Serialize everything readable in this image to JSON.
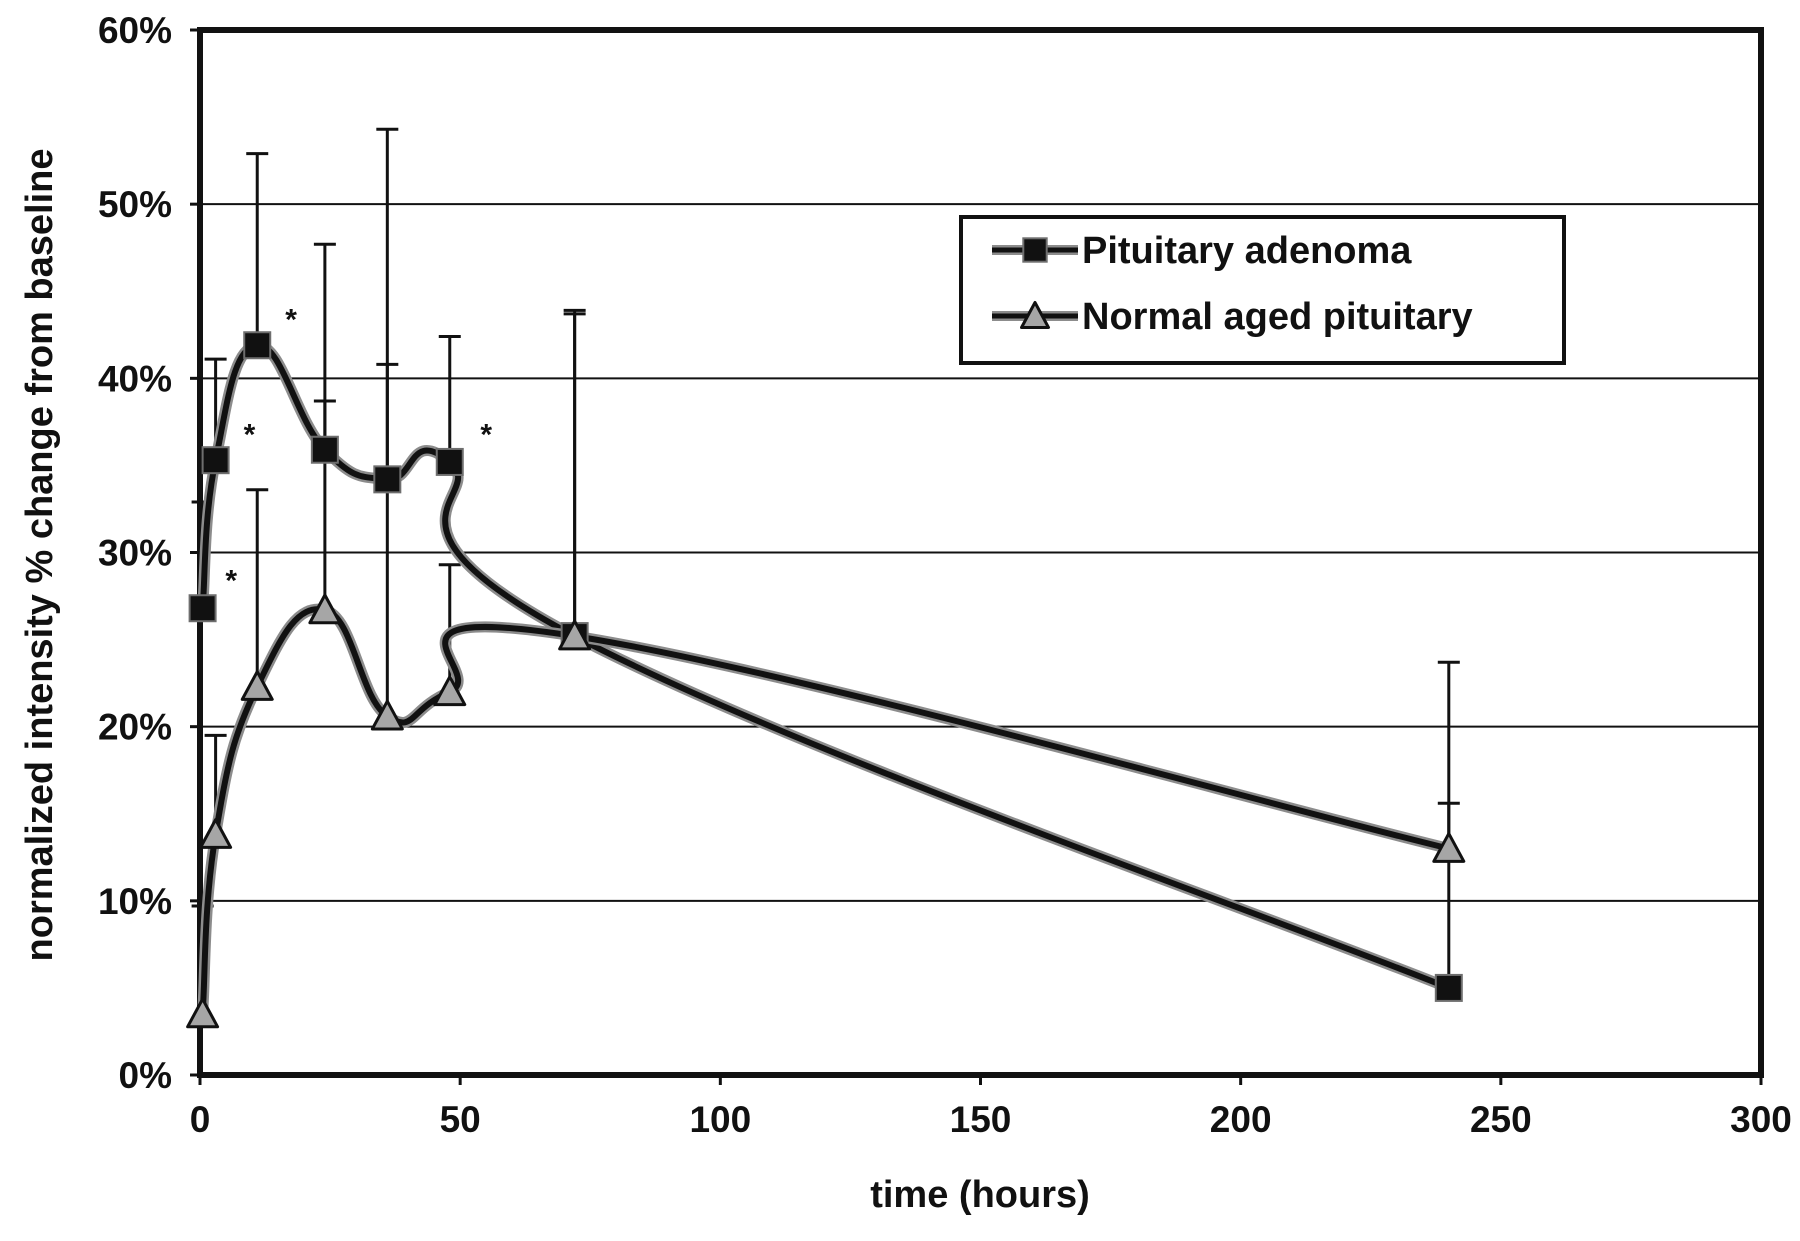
{
  "chart_data": {
    "type": "line",
    "title": "",
    "xlabel": "time (hours)",
    "ylabel": "normalized intensity % change from baseline",
    "xlim": [
      0,
      300
    ],
    "ylim": [
      0,
      60
    ],
    "x_ticks": [
      0,
      50,
      100,
      150,
      200,
      250,
      300
    ],
    "y_ticks": [
      0,
      10,
      20,
      30,
      40,
      50,
      60
    ],
    "x_tick_labels": [
      "0",
      "50",
      "100",
      "150",
      "200",
      "250",
      "300"
    ],
    "y_tick_labels": [
      "0%",
      "10%",
      "20%",
      "30%",
      "40%",
      "50%",
      "60%"
    ],
    "grid": "horizontal",
    "legend_position": "top-right",
    "series": [
      {
        "name": "Pituitary adenoma",
        "marker": "square",
        "color": "#111111",
        "x": [
          0.5,
          3,
          11,
          24,
          36,
          48,
          72,
          240
        ],
        "y": [
          26.8,
          35.3,
          41.9,
          35.9,
          34.2,
          35.2,
          25.2,
          5.0
        ],
        "error_upper": [
          32.9,
          41.1,
          52.9,
          47.7,
          54.3,
          42.4,
          43.9,
          15.6
        ]
      },
      {
        "name": "Normal aged pituitary",
        "marker": "triangle",
        "color": "#9a9a9a",
        "x": [
          0.5,
          3,
          11,
          24,
          36,
          48,
          72,
          240
        ],
        "y": [
          3.5,
          13.8,
          22.3,
          26.7,
          20.6,
          22.0,
          25.2,
          13.0
        ],
        "error_upper": [
          9.7,
          19.5,
          33.6,
          38.7,
          40.8,
          29.3,
          43.7,
          23.7
        ]
      }
    ],
    "annotations": [
      {
        "text": "*",
        "x": 6,
        "y": 28.5
      },
      {
        "text": "*",
        "x": 9.5,
        "y": 36.9
      },
      {
        "text": "*",
        "x": 17.5,
        "y": 43.5
      },
      {
        "text": "*",
        "x": 55,
        "y": 36.9
      }
    ]
  }
}
